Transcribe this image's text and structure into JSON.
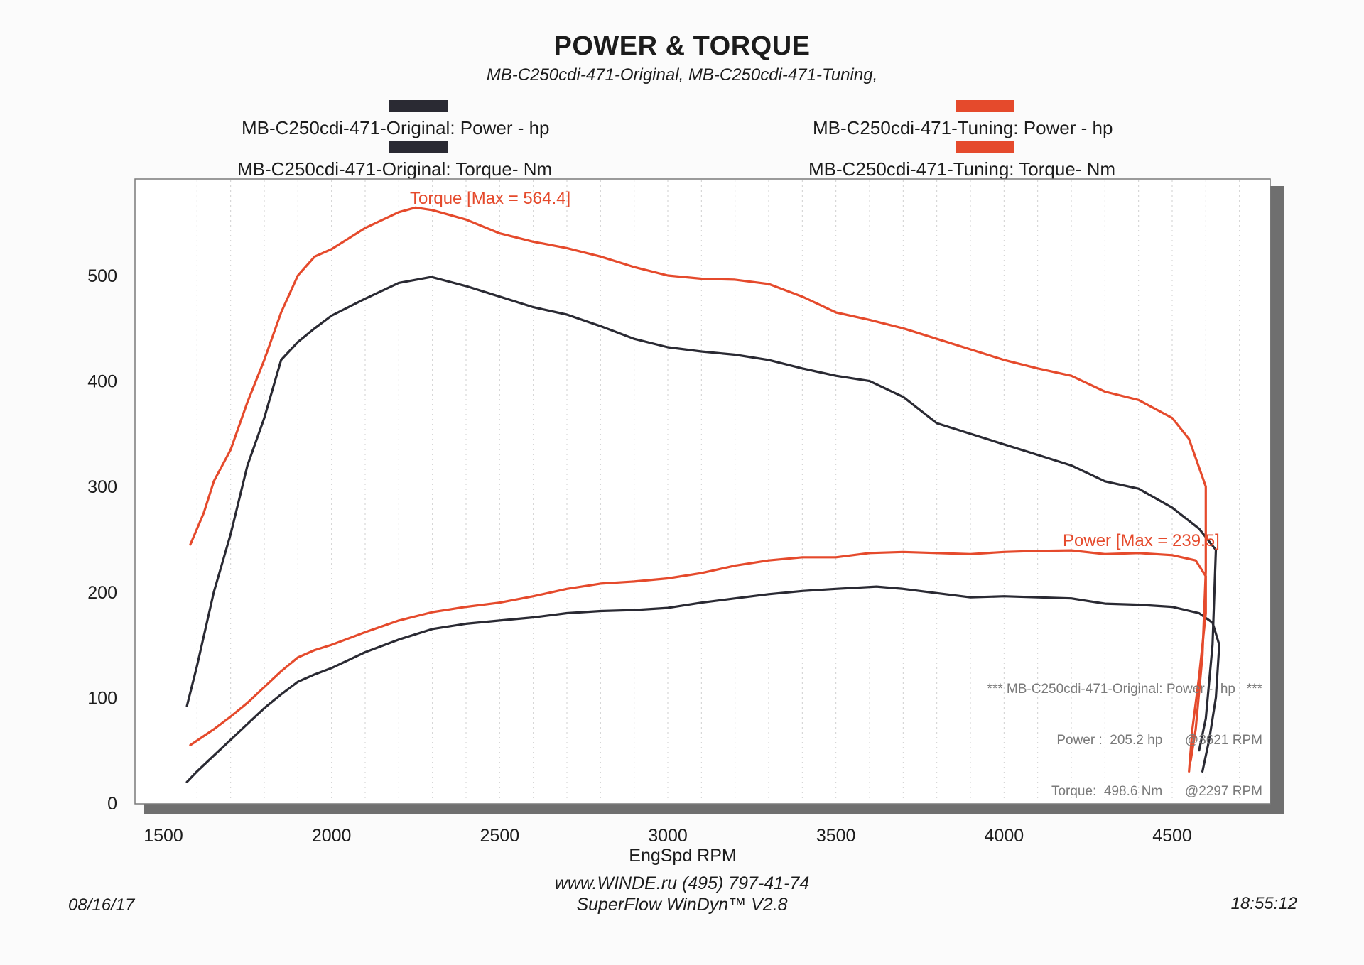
{
  "chart_data": {
    "type": "line",
    "title": "POWER & TORQUE",
    "subtitle": "MB-C250cdi-471-Original, MB-C250cdi-471-Tuning,",
    "xlabel": "EngSpd  RPM",
    "ylabel": "",
    "xlim": [
      1500,
      4800
    ],
    "ylim": [
      0,
      600
    ],
    "xticks": [
      1500,
      2000,
      2500,
      3000,
      3500,
      4000,
      4500
    ],
    "yticks": [
      0,
      100,
      200,
      300,
      400,
      500
    ],
    "grid": "vertical-dotted",
    "annotations": [
      {
        "text": "Torque [Max = 564.4]",
        "series": "MB-C250cdi-471-Tuning: Torque-  Nm"
      },
      {
        "text": "Power  [Max = 239.5]",
        "series": "MB-C250cdi-471-Tuning: Power -  hp"
      }
    ],
    "series": [
      {
        "name": "MB-C250cdi-471-Original: Power -  hp",
        "color": "#2a2a33",
        "points": [
          [
            1570,
            20
          ],
          [
            1600,
            30
          ],
          [
            1650,
            45
          ],
          [
            1700,
            60
          ],
          [
            1750,
            75
          ],
          [
            1800,
            90
          ],
          [
            1850,
            103
          ],
          [
            1900,
            115
          ],
          [
            1950,
            122
          ],
          [
            2000,
            128
          ],
          [
            2100,
            143
          ],
          [
            2200,
            155
          ],
          [
            2300,
            165
          ],
          [
            2400,
            170
          ],
          [
            2500,
            173
          ],
          [
            2600,
            176
          ],
          [
            2700,
            180
          ],
          [
            2800,
            182
          ],
          [
            2900,
            183
          ],
          [
            3000,
            185
          ],
          [
            3100,
            190
          ],
          [
            3200,
            194
          ],
          [
            3300,
            198
          ],
          [
            3400,
            201
          ],
          [
            3500,
            203
          ],
          [
            3621,
            205.2
          ],
          [
            3700,
            203
          ],
          [
            3800,
            199
          ],
          [
            3900,
            195
          ],
          [
            4000,
            196
          ],
          [
            4100,
            195
          ],
          [
            4200,
            194
          ],
          [
            4300,
            189
          ],
          [
            4400,
            188
          ],
          [
            4500,
            186
          ],
          [
            4580,
            180
          ],
          [
            4620,
            171
          ],
          [
            4640,
            150
          ],
          [
            4630,
            100
          ],
          [
            4610,
            60
          ],
          [
            4590,
            30
          ]
        ]
      },
      {
        "name": "MB-C250cdi-471-Original: Torque-  Nm",
        "color": "#2a2a33",
        "points": [
          [
            1570,
            92
          ],
          [
            1600,
            130
          ],
          [
            1650,
            200
          ],
          [
            1700,
            255
          ],
          [
            1750,
            320
          ],
          [
            1800,
            365
          ],
          [
            1850,
            420
          ],
          [
            1900,
            437
          ],
          [
            1950,
            450
          ],
          [
            2000,
            462
          ],
          [
            2100,
            478
          ],
          [
            2200,
            493
          ],
          [
            2297,
            498.6
          ],
          [
            2400,
            490
          ],
          [
            2500,
            480
          ],
          [
            2600,
            470
          ],
          [
            2700,
            463
          ],
          [
            2800,
            452
          ],
          [
            2900,
            440
          ],
          [
            3000,
            432
          ],
          [
            3100,
            428
          ],
          [
            3200,
            425
          ],
          [
            3300,
            420
          ],
          [
            3400,
            412
          ],
          [
            3500,
            405
          ],
          [
            3600,
            400
          ],
          [
            3700,
            385
          ],
          [
            3800,
            360
          ],
          [
            3900,
            350
          ],
          [
            4000,
            340
          ],
          [
            4100,
            330
          ],
          [
            4200,
            320
          ],
          [
            4300,
            305
          ],
          [
            4400,
            298
          ],
          [
            4500,
            280
          ],
          [
            4580,
            260
          ],
          [
            4630,
            240
          ],
          [
            4620,
            150
          ],
          [
            4600,
            80
          ],
          [
            4580,
            50
          ]
        ]
      },
      {
        "name": "MB-C250cdi-471-Tuning: Power -  hp",
        "color": "#e54a2c",
        "points": [
          [
            1580,
            55
          ],
          [
            1650,
            70
          ],
          [
            1700,
            82
          ],
          [
            1750,
            95
          ],
          [
            1800,
            110
          ],
          [
            1850,
            125
          ],
          [
            1900,
            138
          ],
          [
            1950,
            145
          ],
          [
            2000,
            150
          ],
          [
            2100,
            162
          ],
          [
            2200,
            173
          ],
          [
            2300,
            181
          ],
          [
            2400,
            186
          ],
          [
            2500,
            190
          ],
          [
            2600,
            196
          ],
          [
            2700,
            203
          ],
          [
            2800,
            208
          ],
          [
            2900,
            210
          ],
          [
            3000,
            213
          ],
          [
            3100,
            218
          ],
          [
            3200,
            225
          ],
          [
            3300,
            230
          ],
          [
            3400,
            233
          ],
          [
            3500,
            233
          ],
          [
            3600,
            237
          ],
          [
            3700,
            238
          ],
          [
            3800,
            237
          ],
          [
            3900,
            236
          ],
          [
            4000,
            238
          ],
          [
            4100,
            239
          ],
          [
            4200,
            239.5
          ],
          [
            4300,
            236
          ],
          [
            4400,
            237
          ],
          [
            4500,
            235
          ],
          [
            4570,
            230
          ],
          [
            4600,
            215
          ],
          [
            4600,
            180
          ],
          [
            4580,
            120
          ],
          [
            4560,
            70
          ],
          [
            4550,
            30
          ]
        ]
      },
      {
        "name": "MB-C250cdi-471-Tuning: Torque-  Nm",
        "color": "#e54a2c",
        "points": [
          [
            1580,
            245
          ],
          [
            1620,
            275
          ],
          [
            1650,
            305
          ],
          [
            1700,
            335
          ],
          [
            1750,
            380
          ],
          [
            1800,
            420
          ],
          [
            1850,
            465
          ],
          [
            1900,
            500
          ],
          [
            1950,
            518
          ],
          [
            2000,
            525
          ],
          [
            2100,
            545
          ],
          [
            2200,
            560
          ],
          [
            2250,
            564.4
          ],
          [
            2300,
            562
          ],
          [
            2400,
            553
          ],
          [
            2500,
            540
          ],
          [
            2600,
            532
          ],
          [
            2700,
            526
          ],
          [
            2800,
            518
          ],
          [
            2900,
            508
          ],
          [
            3000,
            500
          ],
          [
            3100,
            497
          ],
          [
            3200,
            496
          ],
          [
            3300,
            492
          ],
          [
            3400,
            480
          ],
          [
            3500,
            465
          ],
          [
            3600,
            458
          ],
          [
            3700,
            450
          ],
          [
            3800,
            440
          ],
          [
            3900,
            430
          ],
          [
            4000,
            420
          ],
          [
            4100,
            412
          ],
          [
            4200,
            405
          ],
          [
            4300,
            390
          ],
          [
            4400,
            382
          ],
          [
            4500,
            365
          ],
          [
            4550,
            345
          ],
          [
            4600,
            300
          ],
          [
            4600,
            220
          ],
          [
            4590,
            140
          ],
          [
            4570,
            70
          ],
          [
            4555,
            40
          ]
        ]
      }
    ]
  },
  "legend": [
    {
      "label": "MB-C250cdi-471-Original: Power -  hp",
      "color": "#2a2a33"
    },
    {
      "label": "MB-C250cdi-471-Original: Torque-  Nm",
      "color": "#2a2a33"
    },
    {
      "label": "MB-C250cdi-471-Tuning: Power -  hp",
      "color": "#e54a2c"
    },
    {
      "label": "MB-C250cdi-471-Tuning: Torque-  Nm",
      "color": "#e54a2c"
    }
  ],
  "info_box": {
    "header": "*** MB-C250cdi-471-Original: Power -  hp   ***",
    "power": "Power :  205.2 hp      @3621 RPM",
    "torque": "Torque:  498.6 Nm      @2297 RPM"
  },
  "footer": {
    "url": "www.WINDE.ru  (495) 797-41-74",
    "software": "SuperFlow WinDyn™ V2.8",
    "date": "08/16/17",
    "time": "18:55:12"
  }
}
